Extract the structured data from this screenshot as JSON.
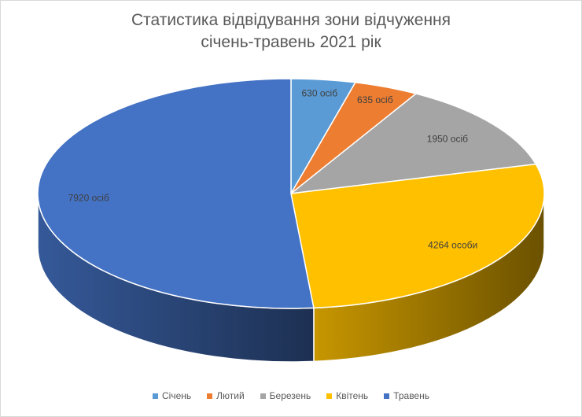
{
  "chart_data": {
    "type": "pie",
    "title_lines": [
      "Статистика відвідування зони відчуження",
      "січень-травень 2021 рік"
    ],
    "categories": [
      "Січень",
      "Лютий",
      "Березень",
      "Квітень",
      "Травень"
    ],
    "values": [
      630,
      635,
      1950,
      4264,
      7920
    ],
    "data_labels": [
      "630 осіб",
      "635 осіб",
      "1950 осіб",
      "4264 особи",
      "7920 осіб"
    ],
    "colors": [
      "#5B9BD5",
      "#ED7D31",
      "#A5A5A5",
      "#FFC000",
      "#4472C4"
    ],
    "legend_position": "bottom",
    "style": "3d-pie"
  }
}
